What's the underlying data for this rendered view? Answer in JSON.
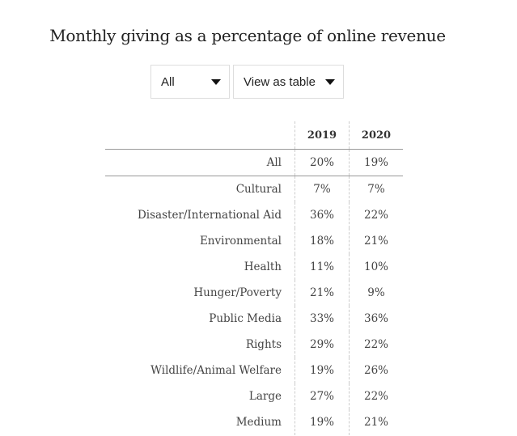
{
  "title": "Monthly giving as a percentage of online revenue",
  "controls": {
    "filter": {
      "selected": "All",
      "icon": "caret-down-icon"
    },
    "view": {
      "selected": "View as table",
      "icon": "caret-down-icon"
    }
  },
  "chart_data": {
    "type": "table",
    "title": "Monthly giving as a percentage of online revenue",
    "columns": [
      "",
      "2019",
      "2020"
    ],
    "rows": [
      {
        "label": "All",
        "values": [
          "20%",
          "19%"
        ]
      },
      {
        "label": "Cultural",
        "values": [
          "7%",
          "7%"
        ]
      },
      {
        "label": "Disaster/International Aid",
        "values": [
          "36%",
          "22%"
        ]
      },
      {
        "label": "Environmental",
        "values": [
          "18%",
          "21%"
        ]
      },
      {
        "label": "Health",
        "values": [
          "11%",
          "10%"
        ]
      },
      {
        "label": "Hunger/Poverty",
        "values": [
          "21%",
          "9%"
        ]
      },
      {
        "label": "Public Media",
        "values": [
          "33%",
          "36%"
        ]
      },
      {
        "label": "Rights",
        "values": [
          "29%",
          "22%"
        ]
      },
      {
        "label": "Wildlife/Animal Welfare",
        "values": [
          "19%",
          "26%"
        ]
      },
      {
        "label": "Large",
        "values": [
          "27%",
          "22%"
        ]
      },
      {
        "label": "Medium",
        "values": [
          "19%",
          "21%"
        ]
      }
    ]
  }
}
